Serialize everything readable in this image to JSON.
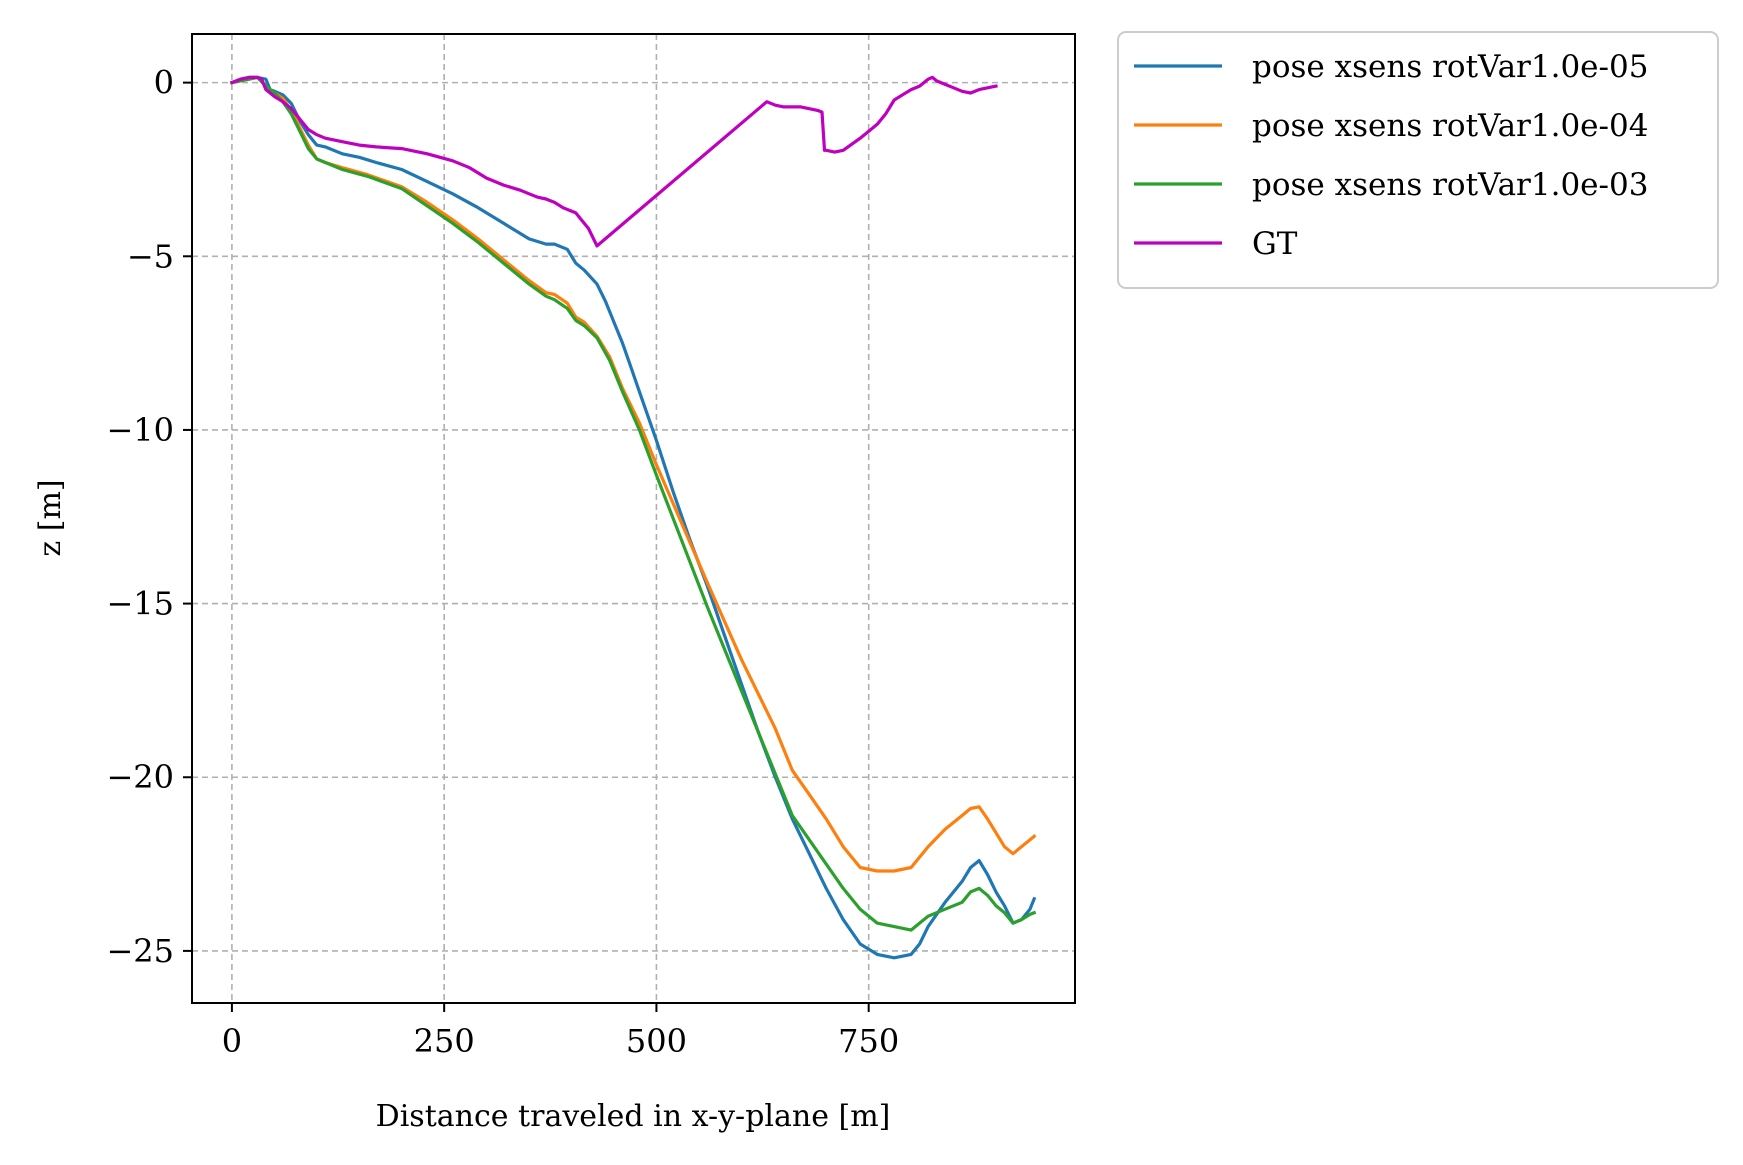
{
  "chart_data": {
    "type": "line",
    "title": "",
    "xlabel": "Distance traveled in x-y-plane [m]",
    "ylabel": "z [m]",
    "xlim": [
      -47,
      993
    ],
    "ylim": [
      -26.5,
      1.4
    ],
    "xticks": [
      0,
      250,
      500,
      750
    ],
    "yticks": [
      0,
      -5,
      -10,
      -15,
      -20,
      -25
    ],
    "xtick_labels": [
      "0",
      "250",
      "500",
      "750"
    ],
    "ytick_labels": [
      "0",
      "−5",
      "−10",
      "−15",
      "−20",
      "−25"
    ],
    "grid": true,
    "legend_position": "outside-top-right",
    "series": [
      {
        "name": "pose xsens rotVar1.0e-05",
        "color": "#1f77b4",
        "x": [
          0,
          10,
          20,
          30,
          40,
          45,
          50,
          60,
          70,
          80,
          90,
          100,
          110,
          130,
          150,
          170,
          200,
          230,
          260,
          290,
          320,
          350,
          370,
          380,
          395,
          405,
          415,
          430,
          440,
          450,
          460,
          470,
          480,
          500,
          520,
          540,
          560,
          580,
          600,
          620,
          640,
          660,
          680,
          700,
          720,
          740,
          760,
          780,
          800,
          810,
          820,
          840,
          860,
          870,
          880,
          890,
          900,
          910,
          920,
          930,
          940,
          945
        ],
        "y": [
          0,
          0.1,
          0.15,
          0.15,
          0.1,
          -0.2,
          -0.25,
          -0.35,
          -0.6,
          -1.1,
          -1.5,
          -1.8,
          -1.85,
          -2.05,
          -2.15,
          -2.3,
          -2.5,
          -2.85,
          -3.2,
          -3.6,
          -4.05,
          -4.5,
          -4.65,
          -4.65,
          -4.8,
          -5.2,
          -5.4,
          -5.8,
          -6.3,
          -6.9,
          -7.5,
          -8.2,
          -8.9,
          -10.3,
          -11.8,
          -13.2,
          -14.5,
          -15.9,
          -17.3,
          -18.7,
          -20,
          -21.2,
          -22.2,
          -23.2,
          -24.1,
          -24.8,
          -25.1,
          -25.2,
          -25.1,
          -24.8,
          -24.3,
          -23.6,
          -23,
          -22.6,
          -22.4,
          -22.8,
          -23.3,
          -23.7,
          -24.2,
          -24.1,
          -23.8,
          -23.5
        ]
      },
      {
        "name": "pose xsens rotVar1.0e-04",
        "color": "#ff7f0e",
        "x": [
          0,
          20,
          30,
          40,
          50,
          60,
          70,
          80,
          90,
          100,
          110,
          130,
          160,
          200,
          230,
          260,
          290,
          320,
          350,
          370,
          380,
          395,
          405,
          415,
          430,
          445,
          460,
          480,
          500,
          530,
          560,
          600,
          640,
          660,
          680,
          700,
          720,
          740,
          760,
          780,
          800,
          810,
          820,
          840,
          860,
          870,
          880,
          890,
          900,
          910,
          920,
          930,
          940,
          945
        ],
        "y": [
          0,
          0.1,
          0.15,
          -0.1,
          -0.3,
          -0.45,
          -0.8,
          -1.3,
          -1.8,
          -2.2,
          -2.3,
          -2.45,
          -2.65,
          -3,
          -3.45,
          -3.95,
          -4.5,
          -5.1,
          -5.7,
          -6.05,
          -6.1,
          -6.35,
          -6.75,
          -6.9,
          -7.3,
          -7.9,
          -8.8,
          -9.8,
          -11,
          -12.7,
          -14.4,
          -16.6,
          -18.6,
          -19.8,
          -20.5,
          -21.2,
          -22,
          -22.6,
          -22.7,
          -22.7,
          -22.6,
          -22.3,
          -22,
          -21.5,
          -21.1,
          -20.9,
          -20.85,
          -21.2,
          -21.6,
          -22,
          -22.2,
          -22,
          -21.8,
          -21.7
        ]
      },
      {
        "name": "pose xsens rotVar1.0e-03",
        "color": "#2ca02c",
        "x": [
          0,
          20,
          30,
          40,
          50,
          60,
          70,
          80,
          90,
          100,
          110,
          130,
          160,
          200,
          230,
          260,
          290,
          320,
          350,
          370,
          380,
          395,
          405,
          415,
          430,
          445,
          460,
          480,
          500,
          530,
          560,
          600,
          640,
          660,
          680,
          700,
          720,
          740,
          760,
          780,
          790,
          800,
          810,
          820,
          840,
          860,
          870,
          880,
          890,
          900,
          910,
          920,
          930,
          940,
          945
        ],
        "y": [
          0,
          0.1,
          0.15,
          -0.1,
          -0.3,
          -0.55,
          -0.9,
          -1.4,
          -1.9,
          -2.2,
          -2.3,
          -2.5,
          -2.7,
          -3.05,
          -3.55,
          -4.05,
          -4.6,
          -5.2,
          -5.8,
          -6.15,
          -6.25,
          -6.5,
          -6.85,
          -7,
          -7.35,
          -8,
          -8.9,
          -10,
          -11.3,
          -13.2,
          -15.1,
          -17.5,
          -19.9,
          -21.1,
          -21.8,
          -22.5,
          -23.2,
          -23.8,
          -24.2,
          -24.3,
          -24.35,
          -24.4,
          -24.2,
          -24,
          -23.8,
          -23.6,
          -23.3,
          -23.2,
          -23.4,
          -23.7,
          -23.9,
          -24.2,
          -24.1,
          -23.95,
          -23.9
        ]
      },
      {
        "name": "GT",
        "color": "#bf00bf",
        "x": [
          0,
          10,
          20,
          30,
          35,
          40,
          45,
          50,
          60,
          70,
          80,
          90,
          100,
          110,
          130,
          150,
          170,
          200,
          230,
          260,
          280,
          300,
          320,
          340,
          350,
          360,
          370,
          380,
          390,
          400,
          405,
          410,
          420,
          430,
          630,
          640,
          650,
          660,
          670,
          680,
          690,
          695,
          698,
          700,
          710,
          720,
          740,
          760,
          770,
          780,
          790,
          800,
          810,
          820,
          825,
          830,
          840,
          850,
          860,
          870,
          880,
          890,
          900
        ],
        "y": [
          0,
          0.1,
          0.15,
          0.15,
          0.1,
          -0.2,
          -0.3,
          -0.4,
          -0.55,
          -0.75,
          -1.05,
          -1.35,
          -1.5,
          -1.6,
          -1.7,
          -1.8,
          -1.85,
          -1.9,
          -2.05,
          -2.25,
          -2.45,
          -2.75,
          -2.95,
          -3.1,
          -3.2,
          -3.3,
          -3.35,
          -3.45,
          -3.6,
          -3.7,
          -3.75,
          -3.9,
          -4.2,
          -4.7,
          -0.55,
          -0.65,
          -0.7,
          -0.7,
          -0.7,
          -0.75,
          -0.8,
          -0.85,
          -1.95,
          -1.95,
          -2,
          -1.95,
          -1.6,
          -1.2,
          -0.9,
          -0.5,
          -0.35,
          -0.2,
          -0.1,
          0.1,
          0.15,
          0.05,
          -0.05,
          -0.15,
          -0.25,
          -0.3,
          -0.2,
          -0.15,
          -0.1
        ]
      }
    ]
  }
}
